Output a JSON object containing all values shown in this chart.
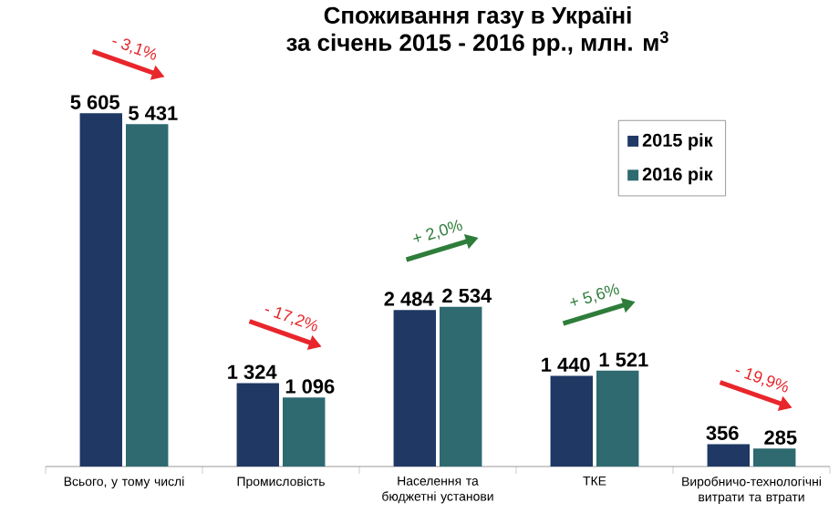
{
  "chart_data": {
    "type": "bar",
    "title": "Споживання газу в Україні",
    "subtitle": "за січень 2015 - 2016 рр., млн. м$^{3}$",
    "categories": [
      "Всього, у тому числі",
      "Промисловість",
      "Населення та бюджетні установи",
      "ТКЕ",
      "Виробничо-технологічні витрати та втрати"
    ],
    "series": [
      {
        "name": "2015 рік",
        "color": "#1f3864",
        "values": [
          5605,
          1324,
          2484,
          1440,
          356
        ],
        "value_labels": [
          "5 605",
          "1 324",
          "2 484",
          "1 440",
          "356"
        ]
      },
      {
        "name": "2016 рік",
        "color": "#2e6a70",
        "values": [
          5431,
          1096,
          2534,
          1521,
          285
        ],
        "value_labels": [
          "5 431",
          "1 096",
          "2 534",
          "1 521",
          "285"
        ]
      }
    ],
    "annotations": [
      "- 3,1%",
      "- 17,2%",
      "+ 2,0%",
      "+ 5,6%",
      "- 19,9%"
    ],
    "legend": "top right"
  }
}
